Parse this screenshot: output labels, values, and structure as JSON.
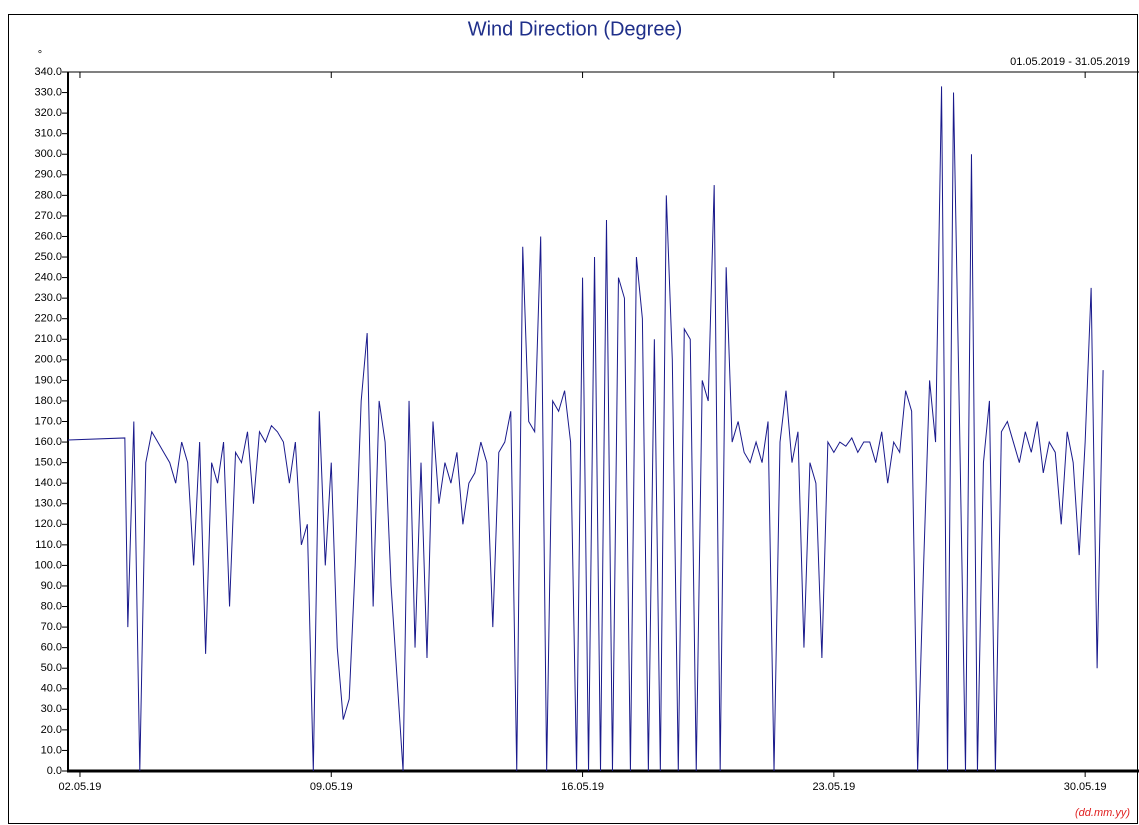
{
  "chart_data": {
    "type": "line",
    "title": "Wind Direction (Degree)",
    "subtitle": "01.05.2019 - 31.05.2019",
    "y_label": "°",
    "x_label": "(dd.mm.yy)",
    "xlim": [
      "2019-05-01T16:00",
      "2019-05-31T12:00"
    ],
    "xticks": [
      {
        "value": "2019-05-02T00:00",
        "label": "02.05.19"
      },
      {
        "value": "2019-05-09T00:00",
        "label": "09.05.19"
      },
      {
        "value": "2019-05-16T00:00",
        "label": "16.05.19"
      },
      {
        "value": "2019-05-23T00:00",
        "label": "23.05.19"
      },
      {
        "value": "2019-05-30T00:00",
        "label": "30.05.19"
      }
    ],
    "ylim": [
      0,
      340
    ],
    "yticks": [
      {
        "value": 0,
        "label": "0.0"
      },
      {
        "value": 10,
        "label": "10.0"
      },
      {
        "value": 20,
        "label": "20.0"
      },
      {
        "value": 30,
        "label": "30.0"
      },
      {
        "value": 40,
        "label": "40.0"
      },
      {
        "value": 50,
        "label": "50.0"
      },
      {
        "value": 60,
        "label": "60.0"
      },
      {
        "value": 70,
        "label": "70.0"
      },
      {
        "value": 80,
        "label": "80.0"
      },
      {
        "value": 90,
        "label": "90.0"
      },
      {
        "value": 100,
        "label": "100.0"
      },
      {
        "value": 110,
        "label": "110.0"
      },
      {
        "value": 120,
        "label": "120.0"
      },
      {
        "value": 130,
        "label": "130.0"
      },
      {
        "value": 140,
        "label": "140.0"
      },
      {
        "value": 150,
        "label": "150.0"
      },
      {
        "value": 160,
        "label": "160.0"
      },
      {
        "value": 170,
        "label": "170.0"
      },
      {
        "value": 180,
        "label": "180.0"
      },
      {
        "value": 190,
        "label": "190.0"
      },
      {
        "value": 200,
        "label": "200.0"
      },
      {
        "value": 210,
        "label": "210.0"
      },
      {
        "value": 220,
        "label": "220.0"
      },
      {
        "value": 230,
        "label": "230.0"
      },
      {
        "value": 240,
        "label": "240.0"
      },
      {
        "value": 250,
        "label": "250.0"
      },
      {
        "value": 260,
        "label": "260.0"
      },
      {
        "value": 270,
        "label": "270.0"
      },
      {
        "value": 280,
        "label": "280.0"
      },
      {
        "value": 290,
        "label": "290.0"
      },
      {
        "value": 300,
        "label": "300.0"
      },
      {
        "value": 310,
        "label": "310.0"
      },
      {
        "value": 320,
        "label": "320.0"
      },
      {
        "value": 330,
        "label": "330.0"
      },
      {
        "value": 340,
        "label": "340.0"
      }
    ],
    "x": [
      "2019-05-01T16:00",
      "2019-05-03T06:00",
      "2019-05-03T08:00",
      "2019-05-03T12:00",
      "2019-05-03T16:00",
      "2019-05-03T20:00",
      "2019-05-04T00:00",
      "2019-05-04T04:00",
      "2019-05-04T08:00",
      "2019-05-04T12:00",
      "2019-05-04T16:00",
      "2019-05-04T20:00",
      "2019-05-05T00:00",
      "2019-05-05T04:00",
      "2019-05-05T08:00",
      "2019-05-05T12:00",
      "2019-05-05T16:00",
      "2019-05-05T20:00",
      "2019-05-06T00:00",
      "2019-05-06T04:00",
      "2019-05-06T08:00",
      "2019-05-06T12:00",
      "2019-05-06T16:00",
      "2019-05-06T20:00",
      "2019-05-07T00:00",
      "2019-05-07T04:00",
      "2019-05-07T08:00",
      "2019-05-07T12:00",
      "2019-05-07T16:00",
      "2019-05-07T20:00",
      "2019-05-08T00:00",
      "2019-05-08T04:00",
      "2019-05-08T08:00",
      "2019-05-08T12:00",
      "2019-05-08T16:00",
      "2019-05-08T20:00",
      "2019-05-09T00:00",
      "2019-05-09T04:00",
      "2019-05-09T08:00",
      "2019-05-09T12:00",
      "2019-05-09T16:00",
      "2019-05-09T20:00",
      "2019-05-10T00:00",
      "2019-05-10T04:00",
      "2019-05-10T08:00",
      "2019-05-10T12:00",
      "2019-05-10T16:00",
      "2019-05-10T20:00",
      "2019-05-11T00:00",
      "2019-05-11T04:00",
      "2019-05-11T08:00",
      "2019-05-11T12:00",
      "2019-05-11T16:00",
      "2019-05-11T20:00",
      "2019-05-12T00:00",
      "2019-05-12T04:00",
      "2019-05-12T08:00",
      "2019-05-12T12:00",
      "2019-05-12T16:00",
      "2019-05-12T20:00",
      "2019-05-13T00:00",
      "2019-05-13T04:00",
      "2019-05-13T08:00",
      "2019-05-13T12:00",
      "2019-05-13T16:00",
      "2019-05-13T20:00",
      "2019-05-14T00:00",
      "2019-05-14T04:00",
      "2019-05-14T08:00",
      "2019-05-14T12:00",
      "2019-05-14T16:00",
      "2019-05-14T20:00",
      "2019-05-15T00:00",
      "2019-05-15T04:00",
      "2019-05-15T08:00",
      "2019-05-15T12:00",
      "2019-05-15T16:00",
      "2019-05-15T20:00",
      "2019-05-16T00:00",
      "2019-05-16T04:00",
      "2019-05-16T08:00",
      "2019-05-16T12:00",
      "2019-05-16T16:00",
      "2019-05-16T20:00",
      "2019-05-17T00:00",
      "2019-05-17T04:00",
      "2019-05-17T08:00",
      "2019-05-17T12:00",
      "2019-05-17T16:00",
      "2019-05-17T20:00",
      "2019-05-18T00:00",
      "2019-05-18T04:00",
      "2019-05-18T08:00",
      "2019-05-18T12:00",
      "2019-05-18T16:00",
      "2019-05-18T20:00",
      "2019-05-19T00:00",
      "2019-05-19T04:00",
      "2019-05-19T08:00",
      "2019-05-19T12:00",
      "2019-05-19T16:00",
      "2019-05-19T20:00",
      "2019-05-20T00:00",
      "2019-05-20T04:00",
      "2019-05-20T08:00",
      "2019-05-20T12:00",
      "2019-05-20T16:00",
      "2019-05-20T20:00",
      "2019-05-21T00:00",
      "2019-05-21T04:00",
      "2019-05-21T08:00",
      "2019-05-21T12:00",
      "2019-05-21T16:00",
      "2019-05-21T20:00",
      "2019-05-22T00:00",
      "2019-05-22T04:00",
      "2019-05-22T08:00",
      "2019-05-22T12:00",
      "2019-05-22T16:00",
      "2019-05-22T20:00",
      "2019-05-23T00:00",
      "2019-05-23T04:00",
      "2019-05-23T08:00",
      "2019-05-23T12:00",
      "2019-05-23T16:00",
      "2019-05-23T20:00",
      "2019-05-24T00:00",
      "2019-05-24T04:00",
      "2019-05-24T08:00",
      "2019-05-24T12:00",
      "2019-05-24T16:00",
      "2019-05-24T20:00",
      "2019-05-25T00:00",
      "2019-05-25T04:00",
      "2019-05-25T08:00",
      "2019-05-25T12:00",
      "2019-05-25T16:00",
      "2019-05-25T20:00",
      "2019-05-26T00:00",
      "2019-05-26T04:00",
      "2019-05-26T08:00",
      "2019-05-26T12:00",
      "2019-05-26T16:00",
      "2019-05-26T20:00",
      "2019-05-27T00:00",
      "2019-05-27T04:00",
      "2019-05-27T08:00",
      "2019-05-27T12:00",
      "2019-05-27T16:00",
      "2019-05-27T20:00",
      "2019-05-28T00:00",
      "2019-05-28T04:00",
      "2019-05-28T08:00",
      "2019-05-28T12:00",
      "2019-05-28T16:00",
      "2019-05-28T20:00",
      "2019-05-29T00:00",
      "2019-05-29T04:00",
      "2019-05-29T08:00",
      "2019-05-29T12:00",
      "2019-05-29T16:00",
      "2019-05-29T20:00",
      "2019-05-30T00:00",
      "2019-05-30T04:00",
      "2019-05-30T08:00",
      "2019-05-30T12:00"
    ],
    "series": [
      {
        "name": "Wind Direction",
        "color": "#1a1a8c",
        "values": [
          161,
          162,
          70,
          170,
          0,
          150,
          165,
          160,
          155,
          150,
          140,
          160,
          150,
          100,
          160,
          57,
          150,
          140,
          160,
          80,
          155,
          150,
          165,
          130,
          165,
          160,
          168,
          165,
          160,
          140,
          160,
          110,
          120,
          0,
          175,
          100,
          150,
          60,
          25,
          35,
          100,
          180,
          213,
          80,
          180,
          160,
          90,
          45,
          0,
          180,
          60,
          150,
          55,
          170,
          130,
          150,
          140,
          155,
          120,
          140,
          145,
          160,
          150,
          70,
          155,
          160,
          175,
          0,
          255,
          170,
          165,
          260,
          0,
          180,
          175,
          185,
          160,
          0,
          240,
          0,
          250,
          0,
          268,
          0,
          240,
          230,
          0,
          250,
          220,
          0,
          210,
          0,
          280,
          200,
          0,
          215,
          210,
          0,
          190,
          180,
          285,
          0,
          245,
          160,
          170,
          155,
          150,
          160,
          150,
          170,
          0,
          160,
          185,
          150,
          165,
          60,
          150,
          140,
          55,
          160,
          155,
          160,
          158,
          162,
          155,
          160,
          160,
          150,
          165,
          140,
          160,
          155,
          185,
          175,
          0,
          100,
          190,
          160,
          333,
          0,
          330,
          170,
          0,
          300,
          0,
          150,
          180,
          0,
          165,
          170,
          160,
          150,
          165,
          155,
          170,
          145,
          160,
          155,
          120,
          165,
          150,
          105,
          160,
          235,
          50,
          195
        ]
      }
    ]
  }
}
